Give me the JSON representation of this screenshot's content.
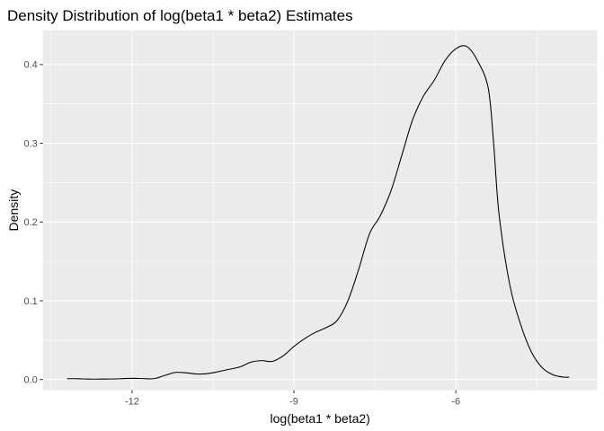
{
  "chart_data": {
    "type": "line",
    "title": "Density Distribution of log(beta1 * beta2) Estimates",
    "xlabel": "log(beta1 * beta2)",
    "ylabel": "Density",
    "xlim": [
      -13.65,
      -3.38
    ],
    "ylim": [
      -0.0135,
      0.4435
    ],
    "x_ticks": [
      -12,
      -9,
      -6
    ],
    "x_tick_labels": [
      "-12",
      "-9",
      "-6"
    ],
    "y_ticks": [
      0.0,
      0.1,
      0.2,
      0.3,
      0.4
    ],
    "y_tick_labels": [
      "0.0",
      "0.1",
      "0.2",
      "0.3",
      "0.4"
    ],
    "grid": true,
    "line_color": "#000000",
    "panel_background": "#ebebeb",
    "grid_color": "#ffffff",
    "series": [
      {
        "x": [
          -13.2,
          -13.0,
          -12.8,
          -12.6,
          -12.4,
          -12.2,
          -12.0,
          -11.8,
          -11.6,
          -11.4,
          -11.2,
          -11.0,
          -10.8,
          -10.6,
          -10.4,
          -10.2,
          -10.0,
          -9.8,
          -9.6,
          -9.4,
          -9.2,
          -9.0,
          -8.8,
          -8.6,
          -8.4,
          -8.2,
          -8.0,
          -7.8,
          -7.6,
          -7.4,
          -7.2,
          -7.0,
          -6.8,
          -6.6,
          -6.4,
          -6.2,
          -6.0,
          -5.8,
          -5.6,
          -5.4,
          -5.3,
          -5.2,
          -5.0,
          -4.8,
          -4.6,
          -4.4,
          -4.2,
          -4.0,
          -3.9
        ],
        "y": [
          0.001,
          0.001,
          0.0005,
          0.0005,
          0.0006,
          0.001,
          0.0015,
          0.0012,
          0.001,
          0.005,
          0.009,
          0.0085,
          0.007,
          0.0075,
          0.01,
          0.013,
          0.016,
          0.022,
          0.024,
          0.023,
          0.03,
          0.042,
          0.052,
          0.06,
          0.066,
          0.075,
          0.1,
          0.14,
          0.185,
          0.208,
          0.24,
          0.285,
          0.33,
          0.36,
          0.38,
          0.405,
          0.42,
          0.423,
          0.405,
          0.37,
          0.3,
          0.21,
          0.12,
          0.07,
          0.035,
          0.015,
          0.006,
          0.003,
          0.003
        ]
      }
    ]
  }
}
